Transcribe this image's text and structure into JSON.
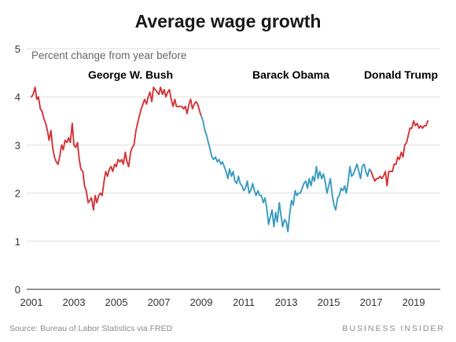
{
  "chart_data": {
    "type": "line",
    "title": "Average wage growth",
    "subtitle": "Percent change from year before",
    "xlabel": "",
    "ylabel": "",
    "xlim": [
      2001,
      2019.7
    ],
    "ylim": [
      0,
      5
    ],
    "y_ticks": [
      "0",
      "1",
      "2",
      "3",
      "4",
      "5"
    ],
    "x_ticks": [
      "2001",
      "2003",
      "2005",
      "2007",
      "2009",
      "2011",
      "2013",
      "2015",
      "2017",
      "2019"
    ],
    "grid": "horizontal",
    "series": [
      {
        "name": "George W. Bush",
        "color": "#d13438",
        "x": [
          2001.0,
          2001.08,
          2001.17,
          2001.25,
          2001.33,
          2001.42,
          2001.5,
          2001.58,
          2001.67,
          2001.75,
          2001.83,
          2001.92,
          2002.0,
          2002.08,
          2002.17,
          2002.25,
          2002.33,
          2002.42,
          2002.5,
          2002.58,
          2002.67,
          2002.75,
          2002.83,
          2002.92,
          2003.0,
          2003.08,
          2003.17,
          2003.25,
          2003.33,
          2003.42,
          2003.5,
          2003.58,
          2003.67,
          2003.75,
          2003.83,
          2003.92,
          2004.0,
          2004.08,
          2004.17,
          2004.25,
          2004.33,
          2004.42,
          2004.5,
          2004.58,
          2004.67,
          2004.75,
          2004.83,
          2004.92,
          2005.0,
          2005.08,
          2005.17,
          2005.25,
          2005.33,
          2005.42,
          2005.5,
          2005.58,
          2005.67,
          2005.75,
          2005.83,
          2005.92,
          2006.0,
          2006.08,
          2006.17,
          2006.25,
          2006.33,
          2006.42,
          2006.5,
          2006.58,
          2006.67,
          2006.75,
          2006.83,
          2006.92,
          2007.0,
          2007.08,
          2007.17,
          2007.25,
          2007.33,
          2007.42,
          2007.5,
          2007.58,
          2007.67,
          2007.75,
          2007.83,
          2007.92,
          2008.0,
          2008.08,
          2008.17,
          2008.25,
          2008.33,
          2008.42,
          2008.5,
          2008.58,
          2008.67,
          2008.75,
          2008.83,
          2008.92,
          2009.0
        ],
        "values": [
          4.0,
          4.05,
          4.2,
          3.95,
          4.0,
          3.75,
          3.7,
          3.55,
          3.45,
          3.3,
          3.1,
          3.3,
          2.95,
          2.75,
          2.65,
          2.6,
          2.75,
          3.0,
          2.9,
          3.1,
          3.05,
          3.15,
          3.05,
          3.45,
          3.0,
          2.95,
          3.05,
          2.7,
          2.5,
          2.45,
          2.15,
          2.05,
          1.8,
          1.85,
          1.9,
          1.65,
          1.95,
          1.8,
          1.95,
          2.0,
          1.95,
          2.25,
          2.45,
          2.35,
          2.5,
          2.55,
          2.45,
          2.6,
          2.55,
          2.7,
          2.65,
          2.7,
          2.6,
          2.85,
          2.65,
          2.55,
          2.85,
          2.95,
          3.0,
          3.3,
          3.45,
          3.6,
          3.75,
          3.85,
          3.95,
          3.85,
          4.0,
          4.1,
          3.9,
          4.2,
          4.15,
          4.1,
          4.05,
          4.2,
          4.05,
          4.15,
          4.0,
          4.1,
          4.15,
          3.95,
          3.8,
          3.95,
          3.8,
          3.8,
          3.8,
          3.8,
          3.75,
          3.8,
          3.65,
          3.85,
          3.95,
          3.75,
          3.85,
          3.9,
          3.85,
          3.7,
          3.6
        ]
      },
      {
        "name": "Barack Obama",
        "color": "#3a9bbf",
        "x": [
          2009.0,
          2009.08,
          2009.17,
          2009.25,
          2009.33,
          2009.42,
          2009.5,
          2009.58,
          2009.67,
          2009.75,
          2009.83,
          2009.92,
          2010.0,
          2010.08,
          2010.17,
          2010.25,
          2010.33,
          2010.42,
          2010.5,
          2010.58,
          2010.67,
          2010.75,
          2010.83,
          2010.92,
          2011.0,
          2011.08,
          2011.17,
          2011.25,
          2011.33,
          2011.42,
          2011.5,
          2011.58,
          2011.67,
          2011.75,
          2011.83,
          2011.92,
          2012.0,
          2012.08,
          2012.17,
          2012.25,
          2012.33,
          2012.42,
          2012.5,
          2012.58,
          2012.67,
          2012.75,
          2012.83,
          2012.92,
          2013.0,
          2013.08,
          2013.17,
          2013.25,
          2013.33,
          2013.42,
          2013.5,
          2013.58,
          2013.67,
          2013.75,
          2013.83,
          2013.92,
          2014.0,
          2014.08,
          2014.17,
          2014.25,
          2014.33,
          2014.42,
          2014.5,
          2014.58,
          2014.67,
          2014.75,
          2014.83,
          2014.92,
          2015.0,
          2015.08,
          2015.17,
          2015.25,
          2015.33,
          2015.42,
          2015.5,
          2015.58,
          2015.67,
          2015.75,
          2015.83,
          2015.92,
          2016.0,
          2016.08,
          2016.17,
          2016.25,
          2016.33,
          2016.42,
          2016.5,
          2016.58,
          2016.67,
          2016.75,
          2016.83,
          2016.92,
          2017.0
        ],
        "values": [
          3.6,
          3.5,
          3.3,
          3.2,
          3.05,
          2.9,
          2.75,
          2.7,
          2.75,
          2.65,
          2.7,
          2.6,
          2.65,
          2.55,
          2.45,
          2.3,
          2.5,
          2.35,
          2.45,
          2.25,
          2.2,
          2.35,
          2.2,
          2.15,
          2.05,
          2.1,
          2.25,
          2.0,
          2.05,
          2.2,
          2.05,
          1.95,
          2.05,
          1.95,
          1.95,
          1.8,
          1.9,
          1.7,
          1.35,
          1.5,
          1.65,
          1.3,
          1.6,
          1.4,
          1.8,
          1.55,
          1.3,
          1.45,
          1.4,
          1.2,
          1.6,
          1.85,
          1.75,
          2.05,
          1.95,
          2.0,
          2.0,
          2.1,
          2.2,
          2.25,
          2.1,
          2.3,
          2.15,
          2.35,
          2.25,
          2.55,
          2.3,
          2.45,
          2.3,
          2.4,
          2.25,
          2.0,
          2.15,
          2.3,
          1.95,
          1.75,
          1.65,
          1.9,
          1.95,
          2.1,
          2.05,
          2.15,
          2.0,
          2.25,
          2.55,
          2.35,
          2.4,
          2.5,
          2.6,
          2.45,
          2.3,
          2.55,
          2.6,
          2.45,
          2.35,
          2.5,
          2.45
        ]
      },
      {
        "name": "Donald Trump",
        "color": "#d13438",
        "x": [
          2017.0,
          2017.08,
          2017.17,
          2017.25,
          2017.33,
          2017.42,
          2017.5,
          2017.58,
          2017.67,
          2017.75,
          2017.83,
          2017.92,
          2018.0,
          2018.08,
          2018.17,
          2018.25,
          2018.33,
          2018.42,
          2018.5,
          2018.58,
          2018.67,
          2018.75,
          2018.83,
          2018.92,
          2019.0,
          2019.08,
          2019.17,
          2019.25,
          2019.33,
          2019.42,
          2019.5,
          2019.58,
          2019.67
        ],
        "values": [
          2.45,
          2.35,
          2.25,
          2.3,
          2.3,
          2.35,
          2.3,
          2.35,
          2.45,
          2.15,
          2.45,
          2.45,
          2.45,
          2.6,
          2.6,
          2.75,
          2.7,
          2.85,
          2.75,
          3.0,
          3.05,
          3.2,
          3.35,
          3.35,
          3.5,
          3.4,
          3.45,
          3.35,
          3.4,
          3.35,
          3.4,
          3.4,
          3.5
        ]
      }
    ],
    "annotations": [
      {
        "text": "George W. Bush",
        "color": "#d13438"
      },
      {
        "text": "Barack Obama",
        "color": "#3a9bbf"
      },
      {
        "text": "Donald Trump",
        "color": "#d13438"
      }
    ]
  },
  "footer": {
    "source": "Source: Bureau of Labor Statistics via FRED",
    "brand": "BUSINESS INSIDER"
  }
}
